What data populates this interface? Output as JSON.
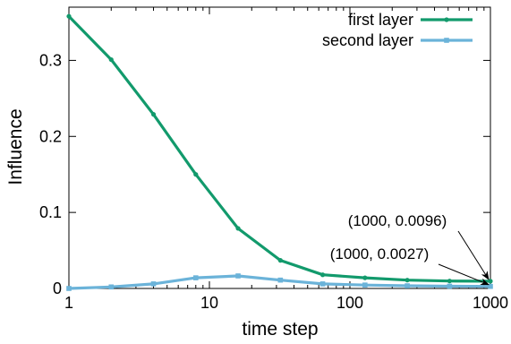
{
  "chart_data": {
    "type": "line",
    "xlabel": "time step",
    "ylabel": "Influence",
    "xscale": "log",
    "xlim": [
      1,
      1000
    ],
    "ylim": [
      0,
      0.37
    ],
    "xticks": [
      1,
      10,
      100,
      1000
    ],
    "xtick_labels": [
      "1",
      "10",
      "100",
      "1000"
    ],
    "yticks": [
      0,
      0.1,
      0.2,
      0.3
    ],
    "ytick_labels": [
      "0",
      "0.1",
      "0.2",
      "0.3"
    ],
    "grid": false,
    "legend_position": "top-right",
    "x": [
      1,
      2,
      4,
      8,
      16,
      32,
      64,
      128,
      256,
      512,
      1000
    ],
    "series": [
      {
        "name": "first layer",
        "color": "#129a6c",
        "marker": "circle",
        "values": [
          0.358,
          0.301,
          0.229,
          0.15,
          0.079,
          0.037,
          0.018,
          0.014,
          0.011,
          0.0098,
          0.0096
        ]
      },
      {
        "name": "second layer",
        "color": "#6bb3d9",
        "marker": "square",
        "values": [
          0.0,
          0.002,
          0.006,
          0.014,
          0.0165,
          0.011,
          0.006,
          0.0045,
          0.0035,
          0.003,
          0.0027
        ]
      }
    ],
    "annotations": [
      {
        "text": "(1000, 0.0096)",
        "x": 1000,
        "y": 0.0096
      },
      {
        "text": "(1000, 0.0027)",
        "x": 1000,
        "y": 0.0027
      }
    ]
  }
}
